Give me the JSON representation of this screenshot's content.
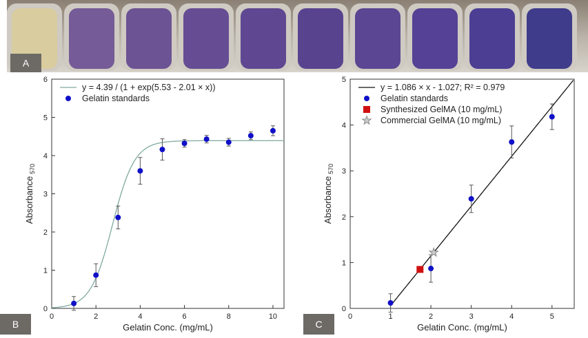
{
  "panels": [
    "A",
    "B",
    "C"
  ],
  "chart_data": [
    {
      "type": "scatter",
      "x_label": "Gelatin Conc. (mg/mL)",
      "y_label": "Absorbance",
      "y_label_sub": "570",
      "xlim": [
        0,
        10.5
      ],
      "ylim": [
        0,
        6
      ],
      "xticks": [
        0,
        2,
        4,
        6,
        8,
        10
      ],
      "yticks": [
        0,
        1,
        2,
        3,
        4,
        5,
        6
      ],
      "series": [
        {
          "name": "y = 4.39 / (1 + exp(5.53 - 2.01 × x))",
          "kind": "logistic",
          "params": [
            4.39,
            5.53,
            2.01
          ],
          "color": "#7fa9a0"
        },
        {
          "name": "Gelatin standards",
          "kind": "circle",
          "color": "#1010c8",
          "x": [
            1,
            2,
            3,
            4,
            5,
            6,
            7,
            8,
            9,
            10
          ],
          "values": [
            0.13,
            0.87,
            2.38,
            3.6,
            4.16,
            4.32,
            4.43,
            4.35,
            4.52,
            4.65
          ],
          "errors": [
            0.18,
            0.3,
            0.3,
            0.35,
            0.28,
            0.1,
            0.1,
            0.1,
            0.1,
            0.13
          ]
        }
      ]
    },
    {
      "type": "scatter",
      "x_label": "Gelatin Conc. (mg/mL)",
      "y_label": "Absorbance",
      "y_label_sub": "570",
      "xlim": [
        0,
        5.55
      ],
      "ylim": [
        0,
        5
      ],
      "xticks": [
        0,
        1,
        2,
        3,
        4,
        5
      ],
      "yticks": [
        0,
        1,
        2,
        3,
        4,
        5
      ],
      "series": [
        {
          "name": "y = 1.086 × x - 1.027; R² = 0.979",
          "kind": "linear",
          "params": [
            1.086,
            -1.027
          ],
          "start": 1,
          "color": "#111"
        },
        {
          "name": "Gelatin standards",
          "kind": "circle",
          "color": "#1010c8",
          "x": [
            1,
            2,
            3,
            4,
            5
          ],
          "values": [
            0.12,
            0.87,
            2.39,
            3.63,
            4.18
          ],
          "errors": [
            0.2,
            0.3,
            0.3,
            0.35,
            0.28
          ]
        },
        {
          "name": "Synthesized GelMA (10 mg/mL)",
          "kind": "square",
          "color": "#d01010",
          "x": [
            1.73
          ],
          "values": [
            0.85
          ]
        },
        {
          "name": "Commercial GelMA (10 mg/mL)",
          "kind": "star",
          "color": "#888",
          "x": [
            2.07
          ],
          "values": [
            1.22
          ]
        }
      ]
    }
  ]
}
